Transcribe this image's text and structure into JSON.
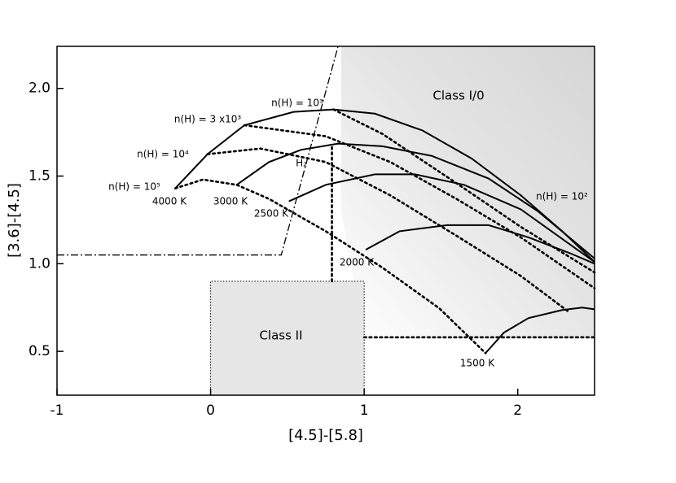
{
  "chart_data": {
    "type": "line",
    "xlabel": "[4.5]-[5.8]",
    "ylabel": "[3.6]-[4.5]",
    "xlim": [
      -1,
      2.5
    ],
    "ylim": [
      0.25,
      2.24
    ],
    "xticks": [
      -1,
      0,
      1,
      2
    ],
    "yticks": [
      0.5,
      {
        "value": 1,
        "label": "1.0"
      },
      1.5,
      {
        "value": 2,
        "label": "2.0"
      }
    ],
    "regions": [
      {
        "fill": "shade",
        "x": [
          0.85,
          2.5,
          2.5,
          1.0,
          0.85
        ],
        "values": [
          2.24,
          2.24,
          0.58,
          0.58,
          1.3
        ]
      },
      {
        "fill": "#e6e6e6",
        "x": [
          0,
          1,
          1,
          0
        ],
        "values": [
          0.25,
          0.25,
          0.9,
          0.9
        ]
      }
    ],
    "series": [
      {
        "color": "#000",
        "dash": "dashdot",
        "x": [
          -1,
          0.46,
          0.83
        ],
        "values": [
          1.05,
          1.05,
          2.24
        ]
      },
      {
        "color": "#000",
        "dash": "dotted",
        "x": [
          0.79,
          0.79
        ],
        "values": [
          0.9,
          1.68
        ]
      },
      {
        "color": "#000",
        "dash": "dotted",
        "x": [
          1.0,
          2.5
        ],
        "values": [
          0.58,
          0.58
        ]
      },
      {
        "color": "#000",
        "dash": "solid",
        "x": [
          -0.23,
          -0.02,
          0.22,
          0.54,
          0.8,
          1.07,
          1.38,
          1.7,
          2.02,
          2.29,
          2.5
        ],
        "values": [
          1.43,
          1.625,
          1.79,
          1.866,
          1.88,
          1.856,
          1.76,
          1.6,
          1.39,
          1.185,
          1.01
        ]
      },
      {
        "color": "#000",
        "dash": "solid",
        "x": [
          0.17,
          0.38,
          0.59,
          0.83,
          1.12,
          1.44,
          1.81,
          2.13,
          2.5
        ],
        "values": [
          1.45,
          1.58,
          1.65,
          1.685,
          1.67,
          1.615,
          1.486,
          1.3,
          1.03
        ]
      },
      {
        "color": "#000",
        "dash": "solid",
        "x": [
          0.51,
          0.75,
          1.07,
          1.33,
          1.65,
          2.02,
          2.5
        ],
        "values": [
          1.356,
          1.45,
          1.51,
          1.51,
          1.45,
          1.31,
          1.01
        ]
      },
      {
        "color": "#000",
        "dash": "solid",
        "x": [
          1.01,
          1.23,
          1.54,
          1.81,
          2.07,
          2.34,
          2.5
        ],
        "values": [
          1.08,
          1.185,
          1.22,
          1.22,
          1.15,
          1.06,
          1.0
        ]
      },
      {
        "color": "#000",
        "dash": "solid",
        "x": [
          1.79,
          1.91,
          2.07,
          2.29,
          2.42,
          2.5
        ],
        "values": [
          0.49,
          0.607,
          0.69,
          0.736,
          0.75,
          0.74
        ]
      },
      {
        "color": "#000",
        "dash": "dotted",
        "x": [
          0.8,
          1.12,
          1.6,
          2.02,
          2.5
        ],
        "values": [
          1.88,
          1.74,
          1.46,
          1.21,
          0.95
        ]
      },
      {
        "color": "#000",
        "dash": "dotted",
        "x": [
          0.22,
          0.75,
          1.17,
          1.6,
          2.02,
          2.5
        ],
        "values": [
          1.79,
          1.727,
          1.58,
          1.37,
          1.15,
          0.86
        ]
      },
      {
        "color": "#000",
        "dash": "dotted",
        "x": [
          -0.02,
          0.325,
          0.75,
          1.17,
          1.6,
          2.02,
          2.34
        ],
        "values": [
          1.625,
          1.657,
          1.58,
          1.39,
          1.16,
          0.93,
          0.72
        ]
      },
      {
        "color": "#000",
        "dash": "dotted",
        "x": [
          -0.23,
          -0.05,
          0.17,
          0.38,
          0.75,
          1.12,
          1.49,
          1.79
        ],
        "values": [
          1.43,
          1.48,
          1.45,
          1.37,
          1.185,
          0.977,
          0.745,
          0.49
        ]
      }
    ],
    "annotations": [
      "n(H) = 10³",
      "n(H) = 3 x10³",
      "n(H) = 10⁴",
      "n(H) = 10⁵",
      "n(H) = 10²",
      "4000 K",
      "3000 K",
      "2500 K",
      "2000 K",
      "1500 K",
      "H₂",
      "Class I/0",
      "Class II"
    ]
  }
}
